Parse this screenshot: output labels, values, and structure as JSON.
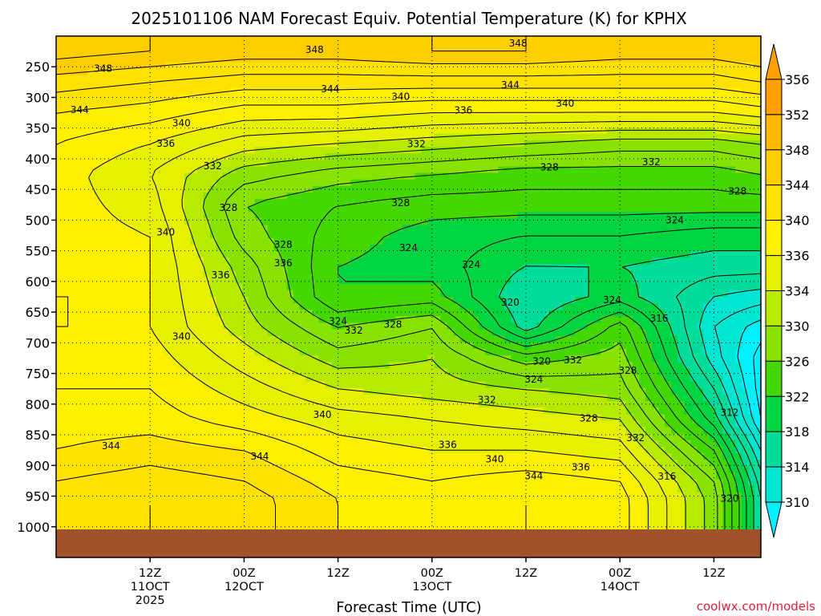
{
  "chart_data": {
    "type": "contour",
    "title": "2025101106 NAM Forecast Equiv. Potential Temperature (K) for KPHX",
    "xlabel": "Forecast Time (UTC)",
    "ylabel": "",
    "credit": "coolwx.com/models",
    "credit_color": "#e0203a",
    "ground_color": "#a0522d",
    "y_ticks": [
      250,
      300,
      350,
      400,
      450,
      500,
      550,
      600,
      650,
      700,
      750,
      800,
      850,
      900,
      950,
      1000
    ],
    "y_tick_labels": [
      "250",
      "300",
      "350",
      "400",
      "450",
      "500",
      "550",
      "600",
      "650",
      "700",
      "750",
      "800",
      "850",
      "900",
      "950",
      "1000"
    ],
    "ylim": [
      200,
      1050
    ],
    "xlim_hours": [
      -6,
      84
    ],
    "x_ticks": [
      {
        "hour": 6,
        "lines": [
          "12Z",
          "11OCT",
          "2025"
        ]
      },
      {
        "hour": 18,
        "lines": [
          "00Z",
          "12OCT"
        ]
      },
      {
        "hour": 30,
        "lines": [
          "12Z"
        ]
      },
      {
        "hour": 42,
        "lines": [
          "00Z",
          "13OCT"
        ]
      },
      {
        "hour": 54,
        "lines": [
          "12Z"
        ]
      },
      {
        "hour": 66,
        "lines": [
          "00Z",
          "14OCT"
        ]
      },
      {
        "hour": 78,
        "lines": [
          "12Z"
        ]
      }
    ],
    "colorbar": {
      "levels": [
        356,
        352,
        348,
        344,
        340,
        336,
        334,
        330,
        326,
        322,
        318,
        314,
        310
      ],
      "colors": [
        "#ffa000",
        "#ffb800",
        "#ffce00",
        "#ffe200",
        "#fff000",
        "#e6f000",
        "#b8ea00",
        "#88e200",
        "#44d800",
        "#00d440",
        "#00dc9a",
        "#00e6d2",
        "#00f0ff"
      ]
    },
    "profile_levels": [
      225,
      275,
      325,
      375,
      425,
      475,
      525,
      575,
      625,
      675,
      725,
      775,
      825,
      875,
      925,
      955
    ],
    "profile_hours": [
      -6,
      6,
      18,
      30,
      42,
      54,
      66,
      78,
      84
    ],
    "theta_e_field": [
      [
        351,
        350,
        349,
        349,
        350,
        350,
        349,
        349,
        350
      ],
      [
        347,
        346,
        345,
        345,
        345,
        345,
        345,
        345,
        346
      ],
      [
        344,
        343,
        341,
        341,
        340,
        340,
        340,
        340,
        341
      ],
      [
        342,
        340,
        337,
        336,
        335,
        334,
        333,
        333,
        334
      ],
      [
        341,
        338,
        333,
        331,
        330,
        329,
        329,
        329,
        330
      ],
      [
        341,
        339,
        330,
        328,
        327,
        327,
        327,
        327,
        327
      ],
      [
        341,
        340,
        331,
        327,
        325,
        324,
        324,
        323,
        323
      ],
      [
        341,
        340,
        333,
        326,
        325,
        322,
        322,
        321,
        321
      ],
      [
        340,
        340,
        334,
        326,
        327,
        320,
        323,
        318,
        317
      ],
      [
        340,
        340,
        335,
        330,
        332,
        321,
        329,
        316,
        313
      ],
      [
        341,
        341,
        337,
        333,
        334,
        329,
        331,
        317,
        311
      ],
      [
        342,
        342,
        339,
        336,
        335,
        334,
        333,
        320,
        311
      ],
      [
        343,
        343,
        341,
        339,
        338,
        337,
        336,
        323,
        312
      ],
      [
        344,
        345,
        344,
        341,
        340,
        340,
        339,
        328,
        316
      ],
      [
        346,
        347,
        346,
        343,
        342,
        343,
        342,
        332,
        319
      ],
      [
        347,
        348,
        347,
        344,
        343,
        344,
        343,
        333,
        320
      ]
    ],
    "contour_labels": [
      {
        "text": "348",
        "hour": 0,
        "p": 253
      },
      {
        "text": "348",
        "hour": 27,
        "p": 222
      },
      {
        "text": "348",
        "hour": 53,
        "p": 212
      },
      {
        "text": "344",
        "hour": 29,
        "p": 286
      },
      {
        "text": "344",
        "hour": 52,
        "p": 280
      },
      {
        "text": "344",
        "hour": -3,
        "p": 320
      },
      {
        "text": "340",
        "hour": 38,
        "p": 299
      },
      {
        "text": "340",
        "hour": 59,
        "p": 310
      },
      {
        "text": "340",
        "hour": 10,
        "p": 342
      },
      {
        "text": "336",
        "hour": 46,
        "p": 321
      },
      {
        "text": "336",
        "hour": 8,
        "p": 375
      },
      {
        "text": "332",
        "hour": 40,
        "p": 376
      },
      {
        "text": "332",
        "hour": 14,
        "p": 412
      },
      {
        "text": "332",
        "hour": 70,
        "p": 405
      },
      {
        "text": "328",
        "hour": 57,
        "p": 414
      },
      {
        "text": "328",
        "hour": 38,
        "p": 472
      },
      {
        "text": "328",
        "hour": 16,
        "p": 480
      },
      {
        "text": "328",
        "hour": 81,
        "p": 453
      },
      {
        "text": "328",
        "hour": 23,
        "p": 540
      },
      {
        "text": "324",
        "hour": 73,
        "p": 500
      },
      {
        "text": "324",
        "hour": 39,
        "p": 545
      },
      {
        "text": "324",
        "hour": 47,
        "p": 573
      },
      {
        "text": "324",
        "hour": 65,
        "p": 630
      },
      {
        "text": "340",
        "hour": 8,
        "p": 520
      },
      {
        "text": "336",
        "hour": 15,
        "p": 590
      },
      {
        "text": "336",
        "hour": 23,
        "p": 570
      },
      {
        "text": "324",
        "hour": 30,
        "p": 665
      },
      {
        "text": "332",
        "hour": 32,
        "p": 680
      },
      {
        "text": "328",
        "hour": 37,
        "p": 670
      },
      {
        "text": "320",
        "hour": 52,
        "p": 634
      },
      {
        "text": "320",
        "hour": 56,
        "p": 730
      },
      {
        "text": "324",
        "hour": 55,
        "p": 760
      },
      {
        "text": "332",
        "hour": 60,
        "p": 728
      },
      {
        "text": "328",
        "hour": 62,
        "p": 823
      },
      {
        "text": "316",
        "hour": 71,
        "p": 660
      },
      {
        "text": "328",
        "hour": 67,
        "p": 745
      },
      {
        "text": "340",
        "hour": 10,
        "p": 690
      },
      {
        "text": "340",
        "hour": 28,
        "p": 817
      },
      {
        "text": "332",
        "hour": 49,
        "p": 793
      },
      {
        "text": "336",
        "hour": 44,
        "p": 866
      },
      {
        "text": "340",
        "hour": 50,
        "p": 890
      },
      {
        "text": "344",
        "hour": 55,
        "p": 917
      },
      {
        "text": "336",
        "hour": 61,
        "p": 903
      },
      {
        "text": "332",
        "hour": 68,
        "p": 855
      },
      {
        "text": "344",
        "hour": 1,
        "p": 868
      },
      {
        "text": "344",
        "hour": 20,
        "p": 885
      },
      {
        "text": "316",
        "hour": 72,
        "p": 918
      },
      {
        "text": "312",
        "hour": 80,
        "p": 814
      },
      {
        "text": "320",
        "hour": 80,
        "p": 954
      }
    ]
  }
}
